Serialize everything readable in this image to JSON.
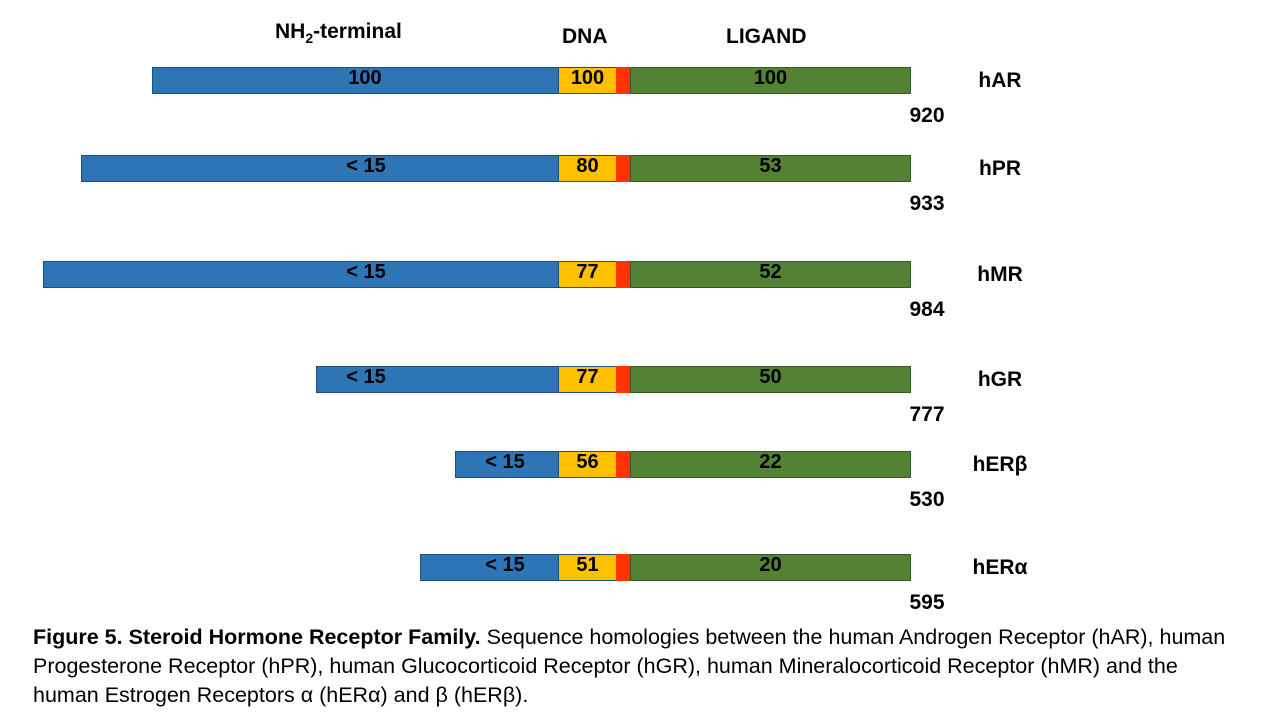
{
  "headers": {
    "nterm_prefix": "NH",
    "nterm_sub": "2",
    "nterm_suffix": "-terminal",
    "dna": "DNA",
    "ligand": "LIGAND"
  },
  "colors": {
    "nterm": "#2e75b6",
    "dna": "#ffc000",
    "hinge": "#ff3300",
    "ligand": "#548235"
  },
  "receptors": [
    {
      "name": "hAR",
      "nterm": "100",
      "dna": "100",
      "ligand": "100",
      "length": "920"
    },
    {
      "name": "hPR",
      "nterm": "< 15",
      "dna": "80",
      "ligand": "53",
      "length": "933"
    },
    {
      "name": "hMR",
      "nterm": "< 15",
      "dna": "77",
      "ligand": "52",
      "length": "984"
    },
    {
      "name": "hGR",
      "nterm": "< 15",
      "dna": "77",
      "ligand": "50",
      "length": "777"
    },
    {
      "name": "hERβ",
      "nterm": "< 15",
      "dna": "56",
      "ligand": "22",
      "length": "530"
    },
    {
      "name": "hERα",
      "nterm": "< 15",
      "dna": "51",
      "ligand": "20",
      "length": "595"
    }
  ],
  "caption": {
    "bold": "Figure 5. Steroid Hormone Receptor Family.",
    "text": " Sequence homologies between the human Androgen Receptor (hAR), human Progesterone Receptor (hPR), human Glucocorticoid Receptor (hGR), human Mineralocorticoid Receptor (hMR) and the human Estrogen Receptors α (hERα) and β (hERβ)."
  }
}
